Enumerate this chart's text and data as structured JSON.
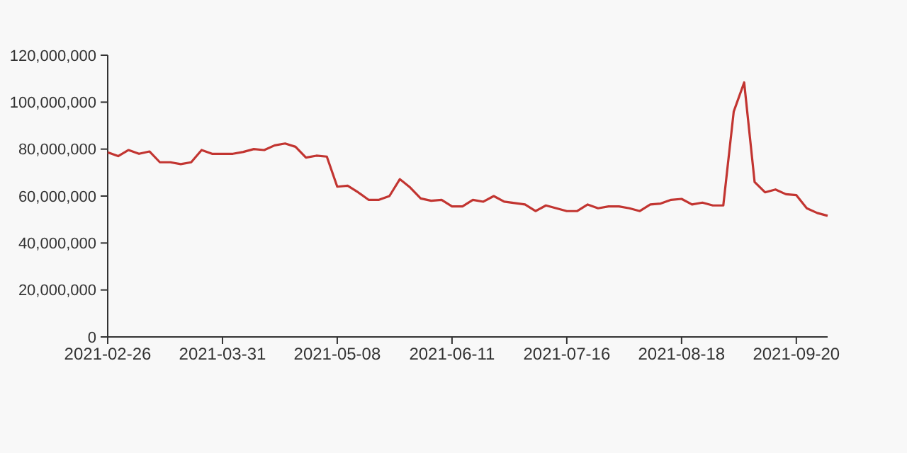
{
  "chart_data": {
    "type": "line",
    "categories": [
      "2021-02-26",
      null,
      null,
      null,
      null,
      null,
      null,
      null,
      null,
      null,
      null,
      "2021-03-31",
      null,
      null,
      null,
      null,
      null,
      null,
      null,
      null,
      null,
      null,
      "2021-05-08",
      null,
      null,
      null,
      null,
      null,
      null,
      null,
      null,
      null,
      null,
      "2021-06-11",
      null,
      null,
      null,
      null,
      null,
      null,
      null,
      null,
      null,
      null,
      "2021-07-16",
      null,
      null,
      null,
      null,
      null,
      null,
      null,
      null,
      null,
      null,
      "2021-08-18",
      null,
      null,
      null,
      null,
      null,
      null,
      null,
      null,
      null,
      null,
      "2021-09-20",
      null,
      null,
      null
    ],
    "series": [
      {
        "color": "#c23531",
        "values": [
          78600000,
          77000000,
          79600000,
          78000000,
          79000000,
          74400000,
          74400000,
          73600000,
          74400000,
          79600000,
          78000000,
          78000000,
          78000000,
          78800000,
          80000000,
          79600000,
          81600000,
          82400000,
          81000000,
          76400000,
          77200000,
          76800000,
          64000000,
          64400000,
          61600000,
          58400000,
          58400000,
          60000000,
          67200000,
          63600000,
          59000000,
          58000000,
          58400000,
          55600000,
          55600000,
          58400000,
          57600000,
          60000000,
          57600000,
          57000000,
          56400000,
          53600000,
          56000000,
          54800000,
          53600000,
          53600000,
          56400000,
          54800000,
          55600000,
          55600000,
          54800000,
          53600000,
          56400000,
          56800000,
          58400000,
          58800000,
          56400000,
          57200000,
          56000000,
          56000000,
          96000000,
          108400000,
          66000000,
          61600000,
          62800000,
          60800000,
          60400000,
          54800000,
          52800000,
          51600000
        ]
      }
    ],
    "ylim": [
      0,
      120000000
    ],
    "yticks": [
      {
        "value": 0,
        "label": "0"
      },
      {
        "value": 20000000,
        "label": "20,000,000"
      },
      {
        "value": 40000000,
        "label": "40,000,000"
      },
      {
        "value": 60000000,
        "label": "60,000,000"
      },
      {
        "value": 80000000,
        "label": "80,000,000"
      },
      {
        "value": 100000000,
        "label": "100,000,000"
      },
      {
        "value": 120000000,
        "label": "120,000,000"
      }
    ],
    "line_style": "solid"
  }
}
